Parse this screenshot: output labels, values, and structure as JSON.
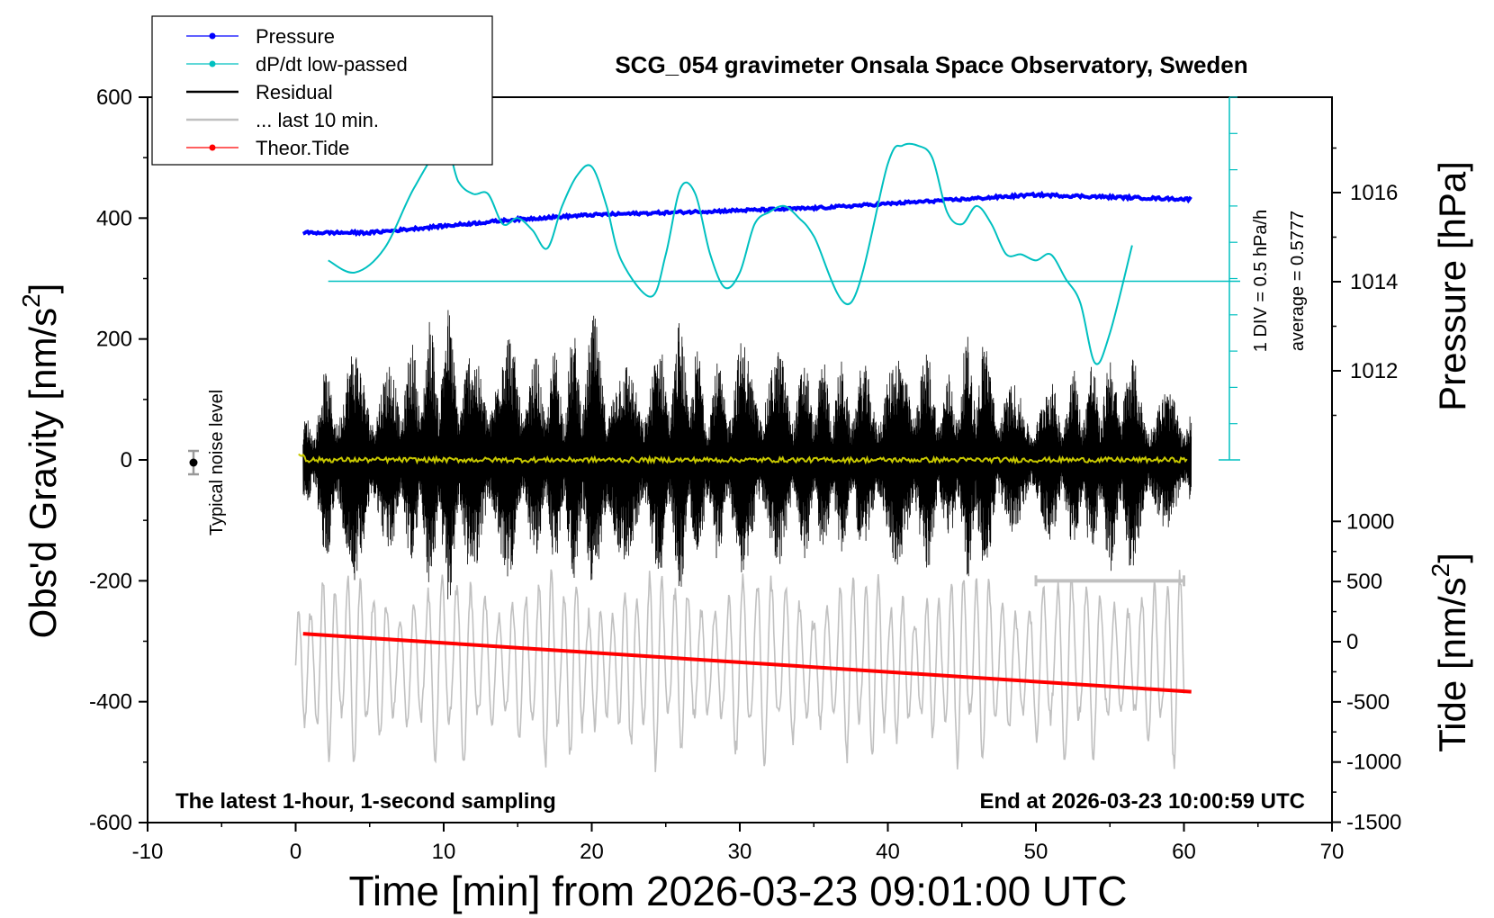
{
  "chart_data": {
    "type": "line",
    "title": "SCG_054 gravimeter Onsala Space Observatory, Sweden",
    "xlabel": "Time [min] from 2026-03-23 09:01:00 UTC",
    "ylabel_left_main": "Obs'd Gravity [nm/s",
    "ylabel_left_sup": "2",
    "ylabel_left_end": "]",
    "ylabel_right_pressure": "Pressure [hPa]",
    "ylabel_right_tide_main": "Tide [nm/s",
    "ylabel_right_tide_sup": "2",
    "ylabel_right_tide_end": "]",
    "xlim": [
      -10,
      70
    ],
    "ylim": [
      -600,
      600
    ],
    "x_ticks": [
      "-10",
      "0",
      "10",
      "20",
      "30",
      "40",
      "50",
      "60",
      "70"
    ],
    "y_ticks": [
      "-600",
      "-400",
      "-200",
      "0",
      "200",
      "400",
      "600"
    ],
    "pressure_axis": {
      "ticks": [
        "1012",
        "1014",
        "1016"
      ],
      "values": [
        1012,
        1014,
        1016
      ]
    },
    "tide_axis": {
      "ticks": [
        "-1500",
        "-1000",
        "-500",
        "0",
        "500",
        "1000"
      ],
      "values": [
        -1500,
        -1000,
        -500,
        0,
        500,
        1000
      ]
    },
    "legend": [
      {
        "label": "Pressure",
        "color": "#0000ff",
        "marker": true
      },
      {
        "label": "dP/dt low-passed",
        "color": "#00c0c0",
        "marker": true
      },
      {
        "label": "Residual",
        "color": "#000000",
        "marker": false
      },
      {
        "label": "... last 10 min.",
        "color": "#c0c0c0",
        "marker": false
      },
      {
        "label": "Theor.Tide",
        "color": "#ff0000",
        "marker": true
      }
    ],
    "annotations": {
      "bottom_left": "The latest 1-hour, 1-second sampling",
      "bottom_right": "End at 2026-03-23 10:00:59 UTC",
      "noise_label": "Typical noise level",
      "dpdt_scale": "1 DIV = 0.5 hPa/h",
      "dpdt_average": "average = 0.5777"
    },
    "series": [
      {
        "name": "Pressure",
        "color": "#0000ff",
        "axis": "pressure_hPa",
        "x": [
          0.5,
          5,
          10,
          15,
          20,
          25,
          30,
          35,
          40,
          45,
          50,
          55,
          60.5
        ],
        "values": [
          1015.1,
          1015.1,
          1015.25,
          1015.4,
          1015.5,
          1015.55,
          1015.6,
          1015.65,
          1015.75,
          1015.85,
          1015.95,
          1015.9,
          1015.85
        ]
      },
      {
        "name": "dP/dt low-passed",
        "color": "#00c0c0",
        "axis": "gravity_plot_units",
        "x": [
          2.2,
          4,
          6,
          8,
          10,
          11,
          12,
          13,
          14,
          15,
          16,
          17,
          18,
          19,
          20,
          21,
          22,
          24,
          25,
          26,
          27,
          28,
          29,
          30,
          31,
          32,
          33,
          34,
          35,
          37.5,
          40,
          41,
          42,
          43,
          44,
          45,
          46,
          47,
          48,
          49,
          50,
          51,
          52,
          53,
          54,
          55,
          56.5
        ],
        "values": [
          330,
          310,
          350,
          450,
          520,
          460,
          440,
          440,
          390,
          400,
          380,
          350,
          420,
          470,
          485,
          420,
          330,
          270,
          340,
          450,
          440,
          340,
          285,
          310,
          390,
          410,
          420,
          400,
          370,
          260,
          490,
          520,
          520,
          500,
          410,
          390,
          420,
          390,
          340,
          340,
          330,
          340,
          300,
          260,
          160,
          210,
          355
        ]
      },
      {
        "name": "Theor.Tide",
        "color": "#ff0000",
        "axis": "tide_nm_s2",
        "x": [
          0.5,
          60.5
        ],
        "values": [
          66,
          -416
        ]
      }
    ],
    "residual_envelope": {
      "x": [
        0.5,
        2,
        4,
        6,
        8,
        10,
        12,
        14,
        16,
        18,
        20,
        22,
        24,
        26,
        28,
        30,
        32,
        34,
        36,
        38,
        40,
        42,
        44,
        46,
        48,
        50,
        52,
        54,
        56,
        58,
        60.5
      ],
      "upper": [
        60,
        150,
        190,
        160,
        200,
        270,
        180,
        230,
        170,
        190,
        250,
        160,
        180,
        240,
        150,
        200,
        190,
        170,
        170,
        160,
        170,
        200,
        140,
        240,
        130,
        120,
        150,
        170,
        190,
        120,
        110
      ],
      "lower": [
        -60,
        -170,
        -200,
        -150,
        -180,
        -250,
        -190,
        -200,
        -170,
        -180,
        -240,
        -170,
        -180,
        -220,
        -160,
        -190,
        -180,
        -170,
        -160,
        -150,
        -160,
        -210,
        -140,
        -230,
        -120,
        -120,
        -150,
        -180,
        -200,
        -130,
        -100
      ]
    },
    "last_10_min_marker": {
      "x_start": 50,
      "x_end": 60,
      "y": -200
    },
    "noise_marker": {
      "x": -7,
      "y": 0,
      "err": 20
    }
  }
}
